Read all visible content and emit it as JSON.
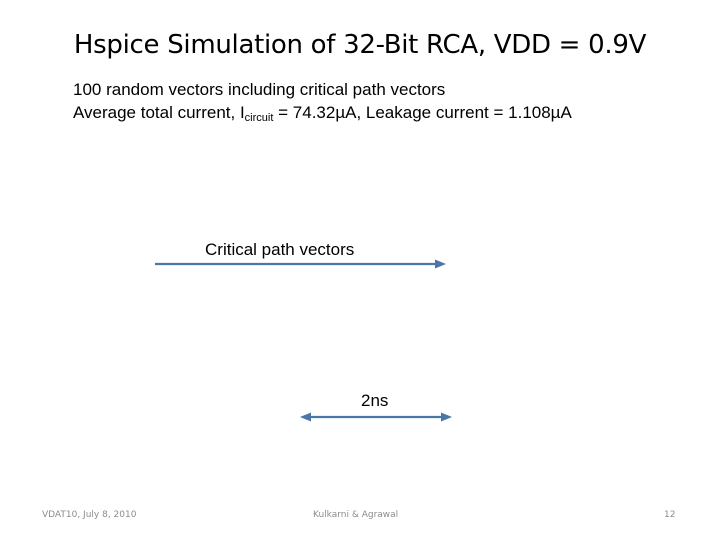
{
  "slide": {
    "title": "Hspice Simulation of 32-Bit RCA, VDD = 0.9V",
    "bullets": {
      "line1": "100 random vectors including critical path vectors",
      "line2_prefix": "Average total current, I",
      "line2_subscript": "circuit",
      "line2_suffix": " = 74.32µA, Leakage current = 1.108µA"
    },
    "annotations": {
      "critical_path_label": "Critical path vectors",
      "time_span_label": "2ns"
    },
    "arrow_color": "#4a76a8",
    "footer": {
      "left": "VDAT10, July 8, 2010",
      "center": "Kulkarni & Agrawal",
      "right": "12"
    }
  }
}
